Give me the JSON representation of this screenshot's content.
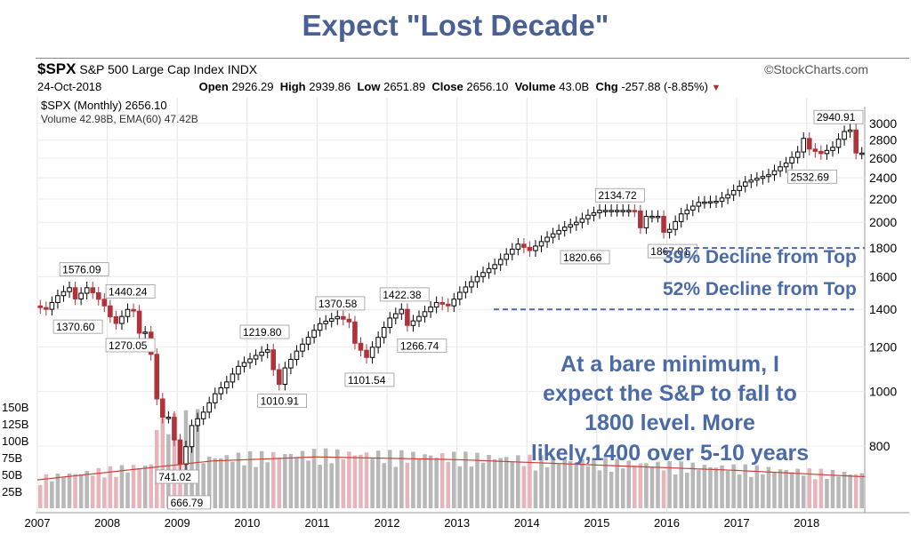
{
  "slide_title": "Expect \"Lost Decade\"",
  "header": {
    "symbol": "$SPX",
    "index_name": "S&P 500 Large Cap Index",
    "exchange": "INDX",
    "date": "24-Oct-2018",
    "open_label": "Open",
    "open": "2926.29",
    "high_label": "High",
    "high": "2939.86",
    "low_label": "Low",
    "low": "2651.89",
    "close_label": "Close",
    "close": "2656.10",
    "volume_label": "Volume",
    "volume": "43.0B",
    "chg_label": "Chg",
    "chg": "-257.88 (-8.85%)",
    "brand": "©StockCharts.com"
  },
  "chart_data": {
    "type": "candlestick",
    "legend": [
      "$SPX (Monthly) 2656.10",
      "Volume 42.98B, EMA(60) 47.42B"
    ],
    "x": {
      "tick_labels": [
        "2007",
        "2008",
        "2009",
        "2010",
        "2011",
        "2012",
        "2013",
        "2014",
        "2015",
        "2016",
        "2017",
        "2018"
      ],
      "range": [
        2007.0,
        2018.83
      ]
    },
    "y_price": {
      "scale": "log",
      "range": [
        620,
        3120
      ],
      "tick_labels": [
        "800",
        "1000",
        "1200",
        "1400",
        "1600",
        "1800",
        "2000",
        "2200",
        "2400",
        "2600",
        "2800",
        "3000"
      ]
    },
    "y_volume": {
      "range": [
        0,
        200
      ],
      "unit": "B",
      "tick_labels": [
        "25B",
        "50B",
        "75B",
        "100B",
        "125B",
        "150B"
      ]
    },
    "price_series": [
      [
        2007.0,
        1420
      ],
      [
        2007.17,
        1400
      ],
      [
        2007.33,
        1480
      ],
      [
        2007.5,
        1530
      ],
      [
        2007.58,
        1460
      ],
      [
        2007.75,
        1530
      ],
      [
        2007.83,
        1500
      ],
      [
        2008.0,
        1420
      ],
      [
        2008.08,
        1360
      ],
      [
        2008.17,
        1320
      ],
      [
        2008.33,
        1400
      ],
      [
        2008.42,
        1390
      ],
      [
        2008.5,
        1270
      ],
      [
        2008.58,
        1280
      ],
      [
        2008.67,
        1160
      ],
      [
        2008.75,
        970
      ],
      [
        2008.83,
        900
      ],
      [
        2008.92,
        900
      ],
      [
        2009.0,
        820
      ],
      [
        2009.08,
        740
      ],
      [
        2009.17,
        800
      ],
      [
        2009.25,
        870
      ],
      [
        2009.42,
        920
      ],
      [
        2009.58,
        990
      ],
      [
        2009.75,
        1040
      ],
      [
        2009.92,
        1110
      ],
      [
        2010.17,
        1160
      ],
      [
        2010.33,
        1190
      ],
      [
        2010.42,
        1090
      ],
      [
        2010.5,
        1030
      ],
      [
        2010.58,
        1100
      ],
      [
        2010.75,
        1180
      ],
      [
        2010.92,
        1250
      ],
      [
        2011.08,
        1320
      ],
      [
        2011.33,
        1360
      ],
      [
        2011.5,
        1330
      ],
      [
        2011.58,
        1220
      ],
      [
        2011.75,
        1150
      ],
      [
        2011.92,
        1250
      ],
      [
        2012.08,
        1350
      ],
      [
        2012.25,
        1400
      ],
      [
        2012.33,
        1310
      ],
      [
        2012.5,
        1360
      ],
      [
        2012.75,
        1440
      ],
      [
        2012.92,
        1420
      ],
      [
        2013.08,
        1500
      ],
      [
        2013.33,
        1600
      ],
      [
        2013.58,
        1680
      ],
      [
        2013.92,
        1830
      ],
      [
        2014.08,
        1780
      ],
      [
        2014.33,
        1880
      ],
      [
        2014.58,
        1960
      ],
      [
        2014.75,
        2000
      ],
      [
        2014.92,
        2060
      ],
      [
        2015.08,
        2100
      ],
      [
        2015.33,
        2100
      ],
      [
        2015.58,
        2100
      ],
      [
        2015.67,
        1950
      ],
      [
        2015.75,
        2050
      ],
      [
        2015.92,
        2050
      ],
      [
        2016.0,
        1920
      ],
      [
        2016.08,
        1940
      ],
      [
        2016.25,
        2070
      ],
      [
        2016.5,
        2170
      ],
      [
        2016.75,
        2180
      ],
      [
        2016.92,
        2240
      ],
      [
        2017.17,
        2360
      ],
      [
        2017.5,
        2430
      ],
      [
        2017.75,
        2550
      ],
      [
        2017.92,
        2670
      ],
      [
        2018.0,
        2820
      ],
      [
        2018.08,
        2700
      ],
      [
        2018.25,
        2650
      ],
      [
        2018.42,
        2720
      ],
      [
        2018.58,
        2900
      ],
      [
        2018.67,
        2920
      ],
      [
        2018.75,
        2656
      ]
    ],
    "volume_ema": [
      [
        2007.0,
        42
      ],
      [
        2009.5,
        70
      ],
      [
        2011.0,
        76
      ],
      [
        2013.0,
        72
      ],
      [
        2015.0,
        64
      ],
      [
        2017.0,
        56
      ],
      [
        2018.75,
        47
      ]
    ],
    "price_labels": [
      {
        "text": "1576.09",
        "x": 2007.67,
        "price": 1576
      },
      {
        "text": "1440.24",
        "x": 2008.33,
        "price": 1440
      },
      {
        "text": "1370.60",
        "x": 2007.58,
        "price": 1370
      },
      {
        "text": "1270.05",
        "x": 2008.33,
        "price": 1270
      },
      {
        "text": "741.02",
        "x": 2009.0,
        "price": 741
      },
      {
        "text": "666.79",
        "x": 2009.17,
        "price": 667
      },
      {
        "text": "1219.80",
        "x": 2010.25,
        "price": 1220
      },
      {
        "text": "1010.91",
        "x": 2010.5,
        "price": 1011
      },
      {
        "text": "1370.58",
        "x": 2011.33,
        "price": 1371
      },
      {
        "text": "1101.54",
        "x": 2011.75,
        "price": 1102
      },
      {
        "text": "1422.38",
        "x": 2012.25,
        "price": 1422
      },
      {
        "text": "1266.74",
        "x": 2012.5,
        "price": 1267
      },
      {
        "text": "2134.72",
        "x": 2015.33,
        "price": 2135
      },
      {
        "text": "1820.66",
        "x": 2014.83,
        "price": 1821
      },
      {
        "text": "1867.01",
        "x": 2016.08,
        "price": 1867
      },
      {
        "text": "2532.69",
        "x": 2018.08,
        "price": 2533
      },
      {
        "text": "2940.91",
        "x": 2018.67,
        "price": 2941
      }
    ],
    "dashed_levels": [
      1800,
      1400
    ],
    "annotations": [
      "39% Decline from Top",
      "52% Decline from Top",
      "At a bare minimum, I",
      "expect the S&P to fall to",
      "1800 level. More",
      "likely,1400 over 5-10 years"
    ],
    "colors": {
      "up": "#000000",
      "down": "#b0333a",
      "volume_up": "#b8b8b8",
      "volume_down": "#e6b5bc",
      "ema": "#c9423a",
      "annotation": "#4a6aa8"
    }
  }
}
